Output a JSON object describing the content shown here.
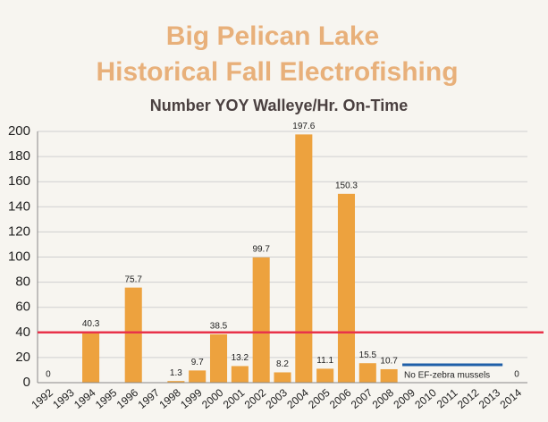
{
  "chart_data": {
    "type": "bar",
    "title": [
      "Big Pelican Lake",
      "Historical Fall Electrofishing"
    ],
    "subtitle": "Number YOY Walleye/Hr. On-Time",
    "categories": [
      "1992",
      "1993",
      "1994",
      "1995",
      "1996",
      "1997",
      "1998",
      "1999",
      "2000",
      "2001",
      "2002",
      "2003",
      "2004",
      "2005",
      "2006",
      "2007",
      "2008",
      "2009",
      "2010",
      "2011",
      "2012",
      "2013",
      "2014"
    ],
    "values": [
      0,
      null,
      40.3,
      null,
      75.7,
      null,
      1.3,
      9.7,
      38.5,
      13.2,
      99.7,
      8.2,
      197.6,
      11.1,
      150.3,
      15.5,
      10.7,
      null,
      null,
      null,
      null,
      null,
      0
    ],
    "color": "#eda23e",
    "ylim": [
      0,
      200
    ],
    "yticks": [
      0,
      20,
      40,
      60,
      80,
      100,
      120,
      140,
      160,
      180,
      200
    ],
    "grid": true,
    "reference_line": {
      "value": 40,
      "color": "#e8324a"
    },
    "annotation": {
      "text": "No EF-zebra mussels",
      "color": "#1f5fa8"
    }
  }
}
